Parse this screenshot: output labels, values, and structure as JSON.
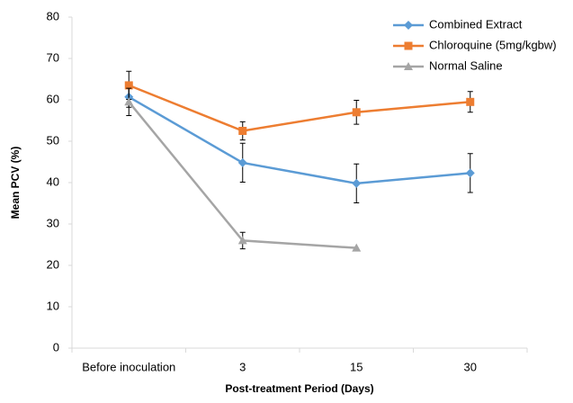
{
  "chart_data": {
    "type": "line",
    "x_label": "Post-treatment Period (Days)",
    "y_label": "Mean PCV (%)",
    "categories": [
      "Before inoculation",
      "3",
      "15",
      "30"
    ],
    "series": [
      {
        "name": "Combined Extract",
        "color": "#5b9bd5",
        "marker": "diamond",
        "values": [
          60.7,
          44.8,
          39.8,
          42.3
        ],
        "errors": [
          2.5,
          4.7,
          4.7,
          4.7
        ]
      },
      {
        "name": "Chloroquine (5mg/kgbw)",
        "color": "#ed7d31",
        "marker": "square",
        "values": [
          63.5,
          52.5,
          57,
          59.5
        ],
        "errors": [
          3.4,
          2.2,
          2.9,
          2.5
        ]
      },
      {
        "name": "Normal Saline",
        "color": "#a5a5a5",
        "marker": "triangle",
        "values": [
          59.5,
          26,
          24.2,
          null
        ],
        "errors": [
          3.3,
          2,
          null,
          null
        ]
      }
    ],
    "ylim": [
      0,
      80
    ],
    "yticks": [
      0,
      10,
      20,
      30,
      40,
      50,
      60,
      70,
      80
    ],
    "grid": false,
    "legend": "top-right"
  }
}
